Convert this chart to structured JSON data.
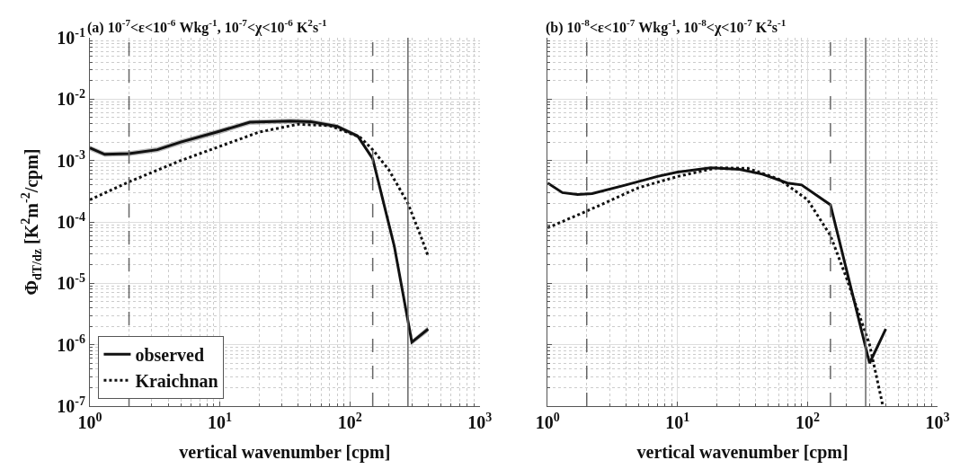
{
  "chart_data": [
    {
      "type": "line",
      "title": "(a) 10$^{-7}$<ε<10$^{-6}$ Wkg$^{-1}$, 10$^{-7}$<χ<10$^{-6}$ K$^{2}$s$^{-1}$",
      "xlabel": "vertical wavenumber [cpm]",
      "ylabel": "Φ$_{dT/dz}$ [K$^{2}$m$^{-2}$/cpm]",
      "log": "xy",
      "grid": true,
      "legend": "bottom left",
      "xlim": [
        1,
        1000
      ],
      "ylim": [
        1e-07,
        0.1
      ],
      "xticks": [
        {
          "value": 1,
          "label": "10$^{0}$"
        },
        {
          "value": 10,
          "label": "10$^{1}$"
        },
        {
          "value": 100,
          "label": "10$^{2}$"
        },
        {
          "value": 1000,
          "label": "10$^{3}$"
        }
      ],
      "yticks": [
        {
          "value": 1e-07,
          "label": "10$^{-7}$"
        },
        {
          "value": 1e-06,
          "label": "10$^{-6}$"
        },
        {
          "value": 1e-05,
          "label": "10$^{-5}$"
        },
        {
          "value": 0.0001,
          "label": "10$^{-4}$"
        },
        {
          "value": 0.001,
          "label": "10$^{-3}$"
        },
        {
          "value": 0.01,
          "label": "10$^{-2}$"
        },
        {
          "value": 0.1,
          "label": "10$^{-1}$"
        }
      ],
      "ref_lines": [
        {
          "axis": "x",
          "value": 2,
          "color": "#666666",
          "line_style": "dashed"
        },
        {
          "axis": "x",
          "value": 150,
          "color": "#666666",
          "line_style": "dashed"
        },
        {
          "axis": "x",
          "value": 280,
          "color": "#666666",
          "line_style": "solid"
        }
      ],
      "series": [
        {
          "name": "observed",
          "color": "#111111",
          "line_style": "solid",
          "x": [
            1,
            1.3,
            2,
            3.3,
            5,
            10,
            17,
            35,
            50,
            80,
            115,
            150,
            220,
            300,
            400
          ],
          "values": [
            0.0016,
            0.00126,
            0.0013,
            0.0015,
            0.002,
            0.003,
            0.0042,
            0.0044,
            0.0043,
            0.0036,
            0.0025,
            0.00107,
            4e-05,
            1.1e-06,
            1.8e-06
          ],
          "lower": [
            0.00145,
            0.00115,
            0.00118,
            0.00136,
            0.0018,
            0.0027,
            0.0038,
            0.004,
            0.0039,
            0.0033,
            0.0023,
            0.00098,
            3.6e-05,
            1e-06,
            1.6e-06
          ],
          "upper": [
            0.00175,
            0.00138,
            0.00142,
            0.00165,
            0.0022,
            0.0033,
            0.0046,
            0.0048,
            0.0047,
            0.0039,
            0.0027,
            0.00117,
            4.4e-05,
            1.2e-06,
            2e-06
          ]
        },
        {
          "name": "Kraichnan",
          "color": "#111111",
          "line_style": "dotted",
          "x": [
            1,
            2,
            5,
            10,
            20,
            40,
            70,
            120,
            150,
            200,
            280,
            350,
            400
          ],
          "values": [
            0.00023,
            0.00045,
            0.001,
            0.0017,
            0.0029,
            0.0039,
            0.0037,
            0.0024,
            0.0015,
            0.0007,
            0.0002,
            6e-05,
            2.8e-05
          ]
        }
      ]
    },
    {
      "type": "line",
      "title": "(b) 10$^{-8}$<ε<10$^{-7}$ Wkg$^{-1}$, 10$^{-8}$<χ<10$^{-7}$ K$^{2}$s$^{-1}$",
      "xlabel": "vertical wavenumber [cpm]",
      "log": "xy",
      "grid": true,
      "tick_labels": "x",
      "xlim": [
        1,
        1000
      ],
      "ylim": [
        1e-07,
        0.1
      ],
      "xticks": [
        {
          "value": 1,
          "label": "10$^{0}$"
        },
        {
          "value": 10,
          "label": "10$^{1}$"
        },
        {
          "value": 100,
          "label": "10$^{2}$"
        },
        {
          "value": 1000,
          "label": "10$^{3}$"
        }
      ],
      "yticks": [
        {
          "value": 1e-07,
          "label": "10$^{-7}$"
        },
        {
          "value": 1e-06,
          "label": "10$^{-6}$"
        },
        {
          "value": 1e-05,
          "label": "10$^{-5}$"
        },
        {
          "value": 0.0001,
          "label": "10$^{-4}$"
        },
        {
          "value": 0.001,
          "label": "10$^{-3}$"
        },
        {
          "value": 0.01,
          "label": "10$^{-2}$"
        },
        {
          "value": 0.1,
          "label": "10$^{-1}$"
        }
      ],
      "ref_lines": [
        {
          "axis": "x",
          "value": 2,
          "color": "#666666",
          "line_style": "dashed"
        },
        {
          "axis": "x",
          "value": 150,
          "color": "#666666",
          "line_style": "dashed"
        },
        {
          "axis": "x",
          "value": 280,
          "color": "#666666",
          "line_style": "solid"
        }
      ],
      "series": [
        {
          "color": "#111111",
          "line_style": "solid",
          "x": [
            1,
            1.3,
            1.7,
            2.2,
            4,
            7,
            10,
            18,
            30,
            45,
            70,
            90,
            150,
            300,
            400
          ],
          "values": [
            0.00043,
            0.0003,
            0.00028,
            0.00029,
            0.0004,
            0.00055,
            0.00065,
            0.00076,
            0.00072,
            0.0006,
            0.00043,
            0.0004,
            0.00019,
            5e-07,
            1.8e-06
          ]
        },
        {
          "color": "#111111",
          "line_style": "dotted",
          "x": [
            1,
            2,
            5,
            10,
            20,
            35,
            60,
            100,
            150,
            200,
            300,
            380
          ],
          "values": [
            8e-05,
            0.00015,
            0.00036,
            0.00055,
            0.00076,
            0.00074,
            0.0005,
            0.00023,
            6e-05,
            1.2e-05,
            1e-06,
            1e-07
          ]
        }
      ]
    }
  ]
}
